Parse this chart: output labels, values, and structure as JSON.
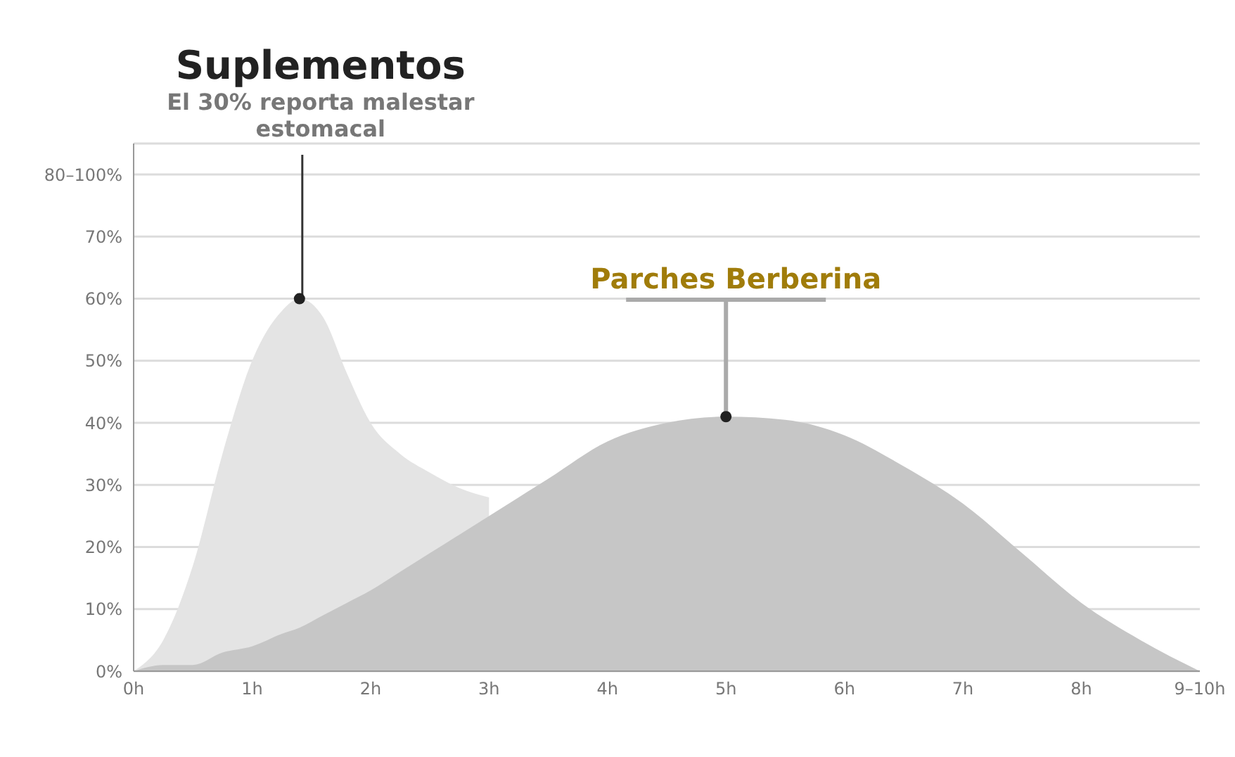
{
  "chart_data": {
    "type": "area",
    "x": [
      0,
      0.25,
      0.5,
      0.75,
      1,
      1.25,
      1.4,
      1.6,
      1.8,
      2,
      2.25,
      2.5,
      2.75,
      3,
      3.25,
      3.5,
      4,
      4.5,
      5,
      5.5,
      6,
      6.5,
      7,
      7.5,
      8,
      8.5,
      9
    ],
    "series": [
      {
        "color": "#e4e4e4",
        "values": [
          0,
          5,
          17,
          35,
          50,
          58,
          60,
          57,
          48,
          40,
          35,
          32,
          29.5,
          28,
          null,
          null,
          null,
          null,
          null,
          null,
          null,
          null,
          null,
          null,
          null,
          null,
          null
        ]
      },
      {
        "color": "#c6c6c6",
        "values": [
          0,
          1,
          1,
          3,
          4,
          6,
          7,
          9,
          11,
          13,
          16,
          19,
          22,
          25,
          28,
          31,
          37,
          40,
          41,
          40.5,
          38,
          33,
          27,
          19,
          11,
          5,
          0
        ]
      }
    ],
    "xlim": [
      0,
      9
    ],
    "xticks": [
      {
        "value": 0,
        "label": "0h"
      },
      {
        "value": 1,
        "label": "1h"
      },
      {
        "value": 2,
        "label": "2h"
      },
      {
        "value": 3,
        "label": "3h"
      },
      {
        "value": 4,
        "label": "4h"
      },
      {
        "value": 5,
        "label": "5h"
      },
      {
        "value": 6,
        "label": "6h"
      },
      {
        "value": 7,
        "label": "7h"
      },
      {
        "value": 8,
        "label": "8h"
      },
      {
        "value": 9,
        "label": "9–10h"
      }
    ],
    "ylim": [
      0,
      85
    ],
    "yticks": [
      {
        "value": 0,
        "label": "0%"
      },
      {
        "value": 10,
        "label": "10%"
      },
      {
        "value": 20,
        "label": "20%"
      },
      {
        "value": 30,
        "label": "30%"
      },
      {
        "value": 40,
        "label": "40%"
      },
      {
        "value": 50,
        "label": "50%"
      },
      {
        "value": 60,
        "label": "60%"
      },
      {
        "value": 70,
        "label": "70%"
      },
      {
        "value": 80,
        "label": "80–100%"
      }
    ],
    "grid": "y",
    "annotations": [
      "Suplementos",
      {
        "text": "El 30% reporta malestar estomacal",
        "x": 1.4,
        "y": 60
      },
      {
        "text": "Parches Berberina",
        "x": 5,
        "y": 41
      }
    ]
  }
}
